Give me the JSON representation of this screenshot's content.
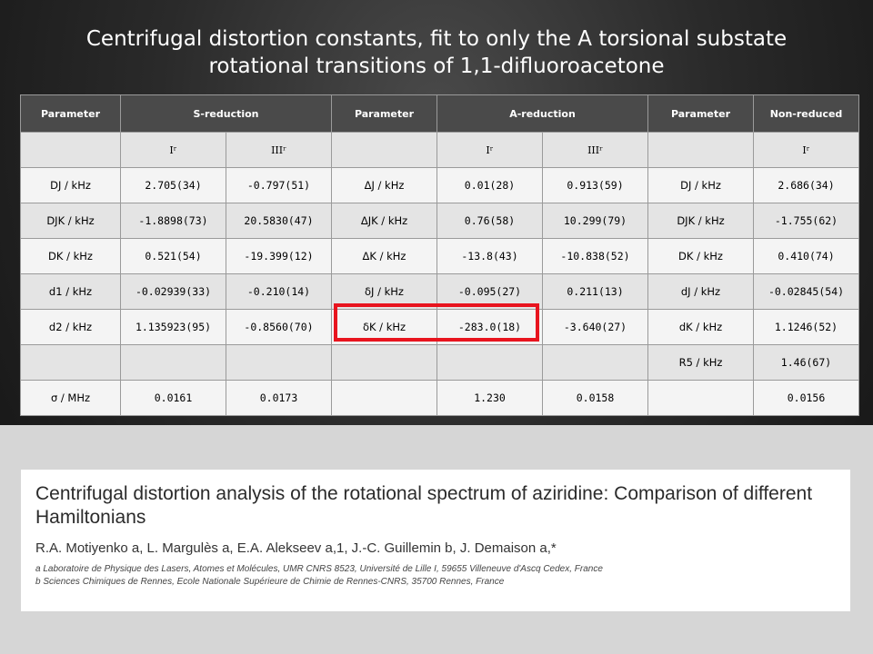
{
  "slide": {
    "title_line1": "Centrifugal distortion constants, fit to only the A torsional substate",
    "title_line2": "rotational transitions of 1,1-difluoroacetone"
  },
  "table": {
    "headers": [
      "Parameter",
      "S-reduction",
      "Parameter",
      "A-reduction",
      "Parameter",
      "Non-reduced"
    ],
    "representations": [
      "",
      "Iʳ",
      "IIIʳ",
      "",
      "Iʳ",
      "IIIʳ",
      "",
      "Iʳ"
    ],
    "rows": [
      [
        "DJ / kHz",
        "2.705(34)",
        "-0.797(51)",
        "ΔJ / kHz",
        "0.01(28)",
        "0.913(59)",
        "DJ / kHz",
        "2.686(34)"
      ],
      [
        "DJK / kHz",
        "-1.8898(73)",
        "20.5830(47)",
        "ΔJK / kHz",
        "0.76(58)",
        "10.299(79)",
        "DJK / kHz",
        "-1.755(62)"
      ],
      [
        "DK / kHz",
        "0.521(54)",
        "-19.399(12)",
        "ΔK / kHz",
        "-13.8(43)",
        "-10.838(52)",
        "DK / kHz",
        "0.410(74)"
      ],
      [
        "d1 / kHz",
        "-0.02939(33)",
        "-0.210(14)",
        "δJ / kHz",
        "-0.095(27)",
        "0.211(13)",
        "dJ / kHz",
        "-0.02845(54)"
      ],
      [
        "d2 / kHz",
        "1.135923(95)",
        "-0.8560(70)",
        "δK / kHz",
        "-283.0(18)",
        "-3.640(27)",
        "dK / kHz",
        "1.1246(52)"
      ],
      [
        "",
        "",
        "",
        "",
        "",
        "",
        "R5 / kHz",
        "1.46(67)"
      ],
      [
        "σ / MHz",
        "0.0161",
        "0.0173",
        "",
        "1.230",
        "0.0158",
        "",
        "0.0156"
      ]
    ]
  },
  "paper": {
    "title": "Centrifugal distortion analysis of the rotational spectrum of aziridine: Comparison of different Hamiltonians",
    "authors": "R.A. Motiyenko a, L. Margulès a, E.A. Alekseev a,1, J.-C. Guillemin b, J. Demaison a,*",
    "affiliation_a": "a Laboratoire de Physique des Lasers, Atomes et Molécules, UMR CNRS 8523, Université de Lille I, 59655 Villeneuve d'Ascq Cedex, France",
    "affiliation_b": "b Sciences Chimiques de Rennes, Ecole Nationale Supérieure de Chimie de Rennes-CNRS, 35700 Rennes, France"
  },
  "colors": {
    "header_bg": "#4a4a4a",
    "highlight": "#e8141e"
  }
}
